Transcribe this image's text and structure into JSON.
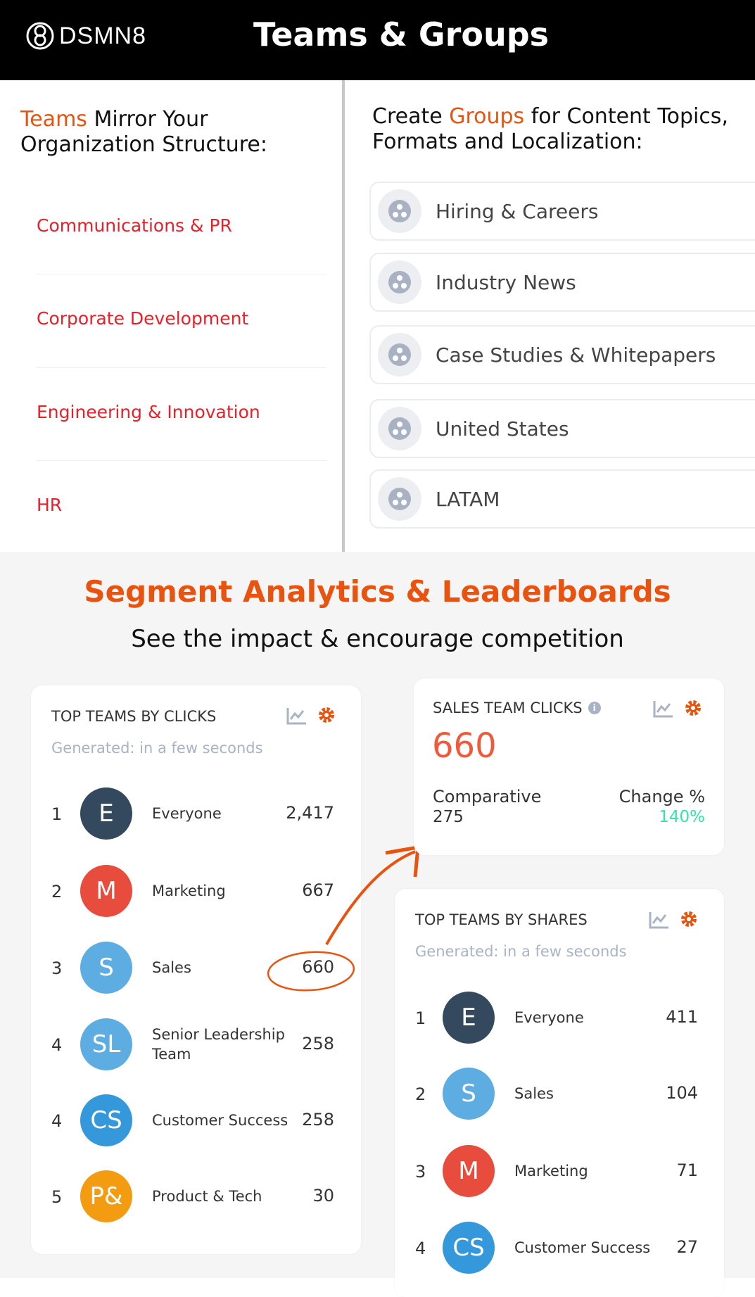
{
  "header": {
    "logo": "DSMN8",
    "title": "Teams & Groups"
  },
  "teams_section": {
    "heading_accent": "Teams",
    "heading_rest": " Mirror Your",
    "heading_line2": "Organization Structure:",
    "items": [
      "Communications & PR",
      "Corporate Development",
      "Engineering & Innovation",
      "HR"
    ]
  },
  "groups_section": {
    "heading_pre": "Create ",
    "heading_accent": "Groups",
    "heading_rest": " for Content Topics,",
    "heading_line2": "Formats and Localization:",
    "items": [
      "Hiring & Careers",
      "Industry News",
      "Case Studies & Whitepapers",
      "United States",
      "LATAM"
    ]
  },
  "analytics": {
    "title": "Segment Analytics & Leaderboards",
    "subtitle": "See the impact & encourage competition"
  },
  "clicks_card": {
    "title": "TOP TEAMS BY CLICKS",
    "generated": "Generated: in a few seconds",
    "rows": [
      {
        "rank": "1",
        "initials": "E",
        "name": "Everyone",
        "value": "2,417",
        "color": "#34495e"
      },
      {
        "rank": "2",
        "initials": "M",
        "name": "Marketing",
        "value": "667",
        "color": "#e74c3c"
      },
      {
        "rank": "3",
        "initials": "S",
        "name": "Sales",
        "value": "660",
        "color": "#5dade2"
      },
      {
        "rank": "4",
        "initials": "SL",
        "name": "Senior Leadership Team",
        "value": "258",
        "color": "#5dade2"
      },
      {
        "rank": "4",
        "initials": "CS",
        "name": "Customer Success",
        "value": "258",
        "color": "#3498db"
      },
      {
        "rank": "5",
        "initials": "P&",
        "name": "Product & Tech",
        "value": "30",
        "color": "#f39c12"
      }
    ]
  },
  "sales_card": {
    "title": "SALES TEAM CLICKS",
    "value": "660",
    "comparative_label": "Comparative",
    "comparative_value": "275",
    "change_label": "Change %",
    "change_value": "140%"
  },
  "shares_card": {
    "title": "TOP TEAMS BY SHARES",
    "generated": "Generated: in a few seconds",
    "rows": [
      {
        "rank": "1",
        "initials": "E",
        "name": "Everyone",
        "value": "411",
        "color": "#34495e"
      },
      {
        "rank": "2",
        "initials": "S",
        "name": "Sales",
        "value": "104",
        "color": "#5dade2"
      },
      {
        "rank": "3",
        "initials": "M",
        "name": "Marketing",
        "value": "71",
        "color": "#e74c3c"
      },
      {
        "rank": "4",
        "initials": "CS",
        "name": "Customer Success",
        "value": "27",
        "color": "#3498db"
      }
    ]
  },
  "colors": {
    "accent": "#e8540f",
    "team_red": "#e8202a",
    "positive": "#2ee6a8"
  }
}
